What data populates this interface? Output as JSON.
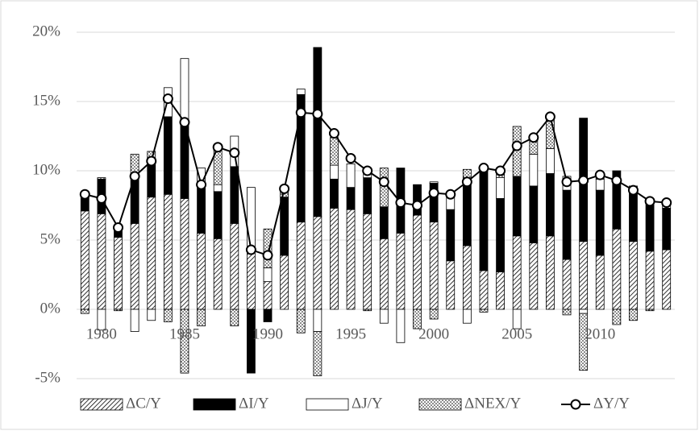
{
  "chart_data": {
    "type": "bar",
    "categories": [
      null,
      "1980",
      null,
      null,
      null,
      null,
      "1985",
      null,
      null,
      null,
      null,
      "1990",
      null,
      null,
      null,
      null,
      "1995",
      null,
      null,
      null,
      null,
      "2000",
      null,
      null,
      null,
      null,
      "2005",
      null,
      null,
      null,
      null,
      "2010",
      null,
      null,
      null,
      null
    ],
    "series": [
      {
        "name": "ΔC/Y",
        "color": "#000000",
        "fill": "hatch",
        "values": [
          7.1,
          6.9,
          5.2,
          6.2,
          8.1,
          8.3,
          8.0,
          5.5,
          5.1,
          6.2,
          4.3,
          2.0,
          3.9,
          6.3,
          6.7,
          7.3,
          7.2,
          6.9,
          5.1,
          5.5,
          6.8,
          6.3,
          3.5,
          4.6,
          2.8,
          2.7,
          5.3,
          4.8,
          5.3,
          3.6,
          4.9,
          3.9,
          5.8,
          4.9,
          4.2,
          4.3
        ]
      },
      {
        "name": "ΔI/Y",
        "color": "#000000",
        "fill": "solid",
        "values": [
          1.1,
          2.5,
          0.5,
          3.5,
          2.7,
          5.6,
          5.5,
          3.5,
          3.4,
          4.1,
          -4.6,
          -0.9,
          4.2,
          9.2,
          12.2,
          2.1,
          1.6,
          2.6,
          2.3,
          4.7,
          2.2,
          2.8,
          3.7,
          4.9,
          7.4,
          5.3,
          4.3,
          4.1,
          4.5,
          5.0,
          8.9,
          4.7,
          4.2,
          3.6,
          3.7,
          3.0
        ]
      },
      {
        "name": "ΔJ/Y",
        "color": "#000000",
        "fill": "white",
        "values": [
          0,
          -1.5,
          0.1,
          -1.6,
          -0.8,
          2.1,
          4.6,
          1.2,
          0.5,
          2.2,
          4.5,
          1.0,
          0,
          0.4,
          -1.6,
          1.0,
          1.7,
          0.3,
          -1.0,
          -2.4,
          0,
          0.1,
          1.2,
          -1.0,
          0,
          1.5,
          -1.4,
          2.3,
          1.8,
          1.0,
          -0.3,
          0.8,
          0,
          0.4,
          0,
          0
        ]
      },
      {
        "name": "ΔNEX/Y",
        "color": "#000000",
        "fill": "dots",
        "values": [
          -0.3,
          0.1,
          -0.1,
          1.5,
          0.6,
          -0.9,
          -4.6,
          -1.2,
          2.9,
          -1.2,
          0,
          2.8,
          0.5,
          -1.7,
          -3.2,
          2.0,
          0,
          -0.1,
          2.8,
          0,
          -1.4,
          -0.7,
          0,
          0.6,
          -0.2,
          0.5,
          3.6,
          1.2,
          2.3,
          -0.4,
          -4.1,
          0.3,
          -1.1,
          -0.8,
          -0.1,
          0.4
        ]
      },
      {
        "name": "ΔY/Y",
        "color": "#000000",
        "kind": "line",
        "values": [
          8.3,
          8.0,
          5.9,
          9.6,
          10.7,
          15.2,
          13.5,
          9.0,
          11.7,
          11.3,
          4.3,
          3.9,
          8.7,
          14.2,
          14.1,
          12.7,
          10.9,
          10.0,
          9.2,
          7.7,
          7.5,
          8.4,
          8.3,
          9.2,
          10.2,
          10.0,
          11.8,
          12.4,
          13.9,
          9.2,
          9.3,
          9.7,
          9.3,
          8.6,
          7.8,
          7.7
        ]
      }
    ],
    "ylim": [
      -5,
      20
    ],
    "yticks": [
      {
        "value": -5,
        "label": "-5%"
      },
      {
        "value": 0,
        "label": "0%"
      },
      {
        "value": 5,
        "label": "5%"
      },
      {
        "value": 10,
        "label": "10%"
      },
      {
        "value": 15,
        "label": "15%"
      },
      {
        "value": 20,
        "label": "20%"
      }
    ],
    "grid": true,
    "legend": "bottom"
  }
}
